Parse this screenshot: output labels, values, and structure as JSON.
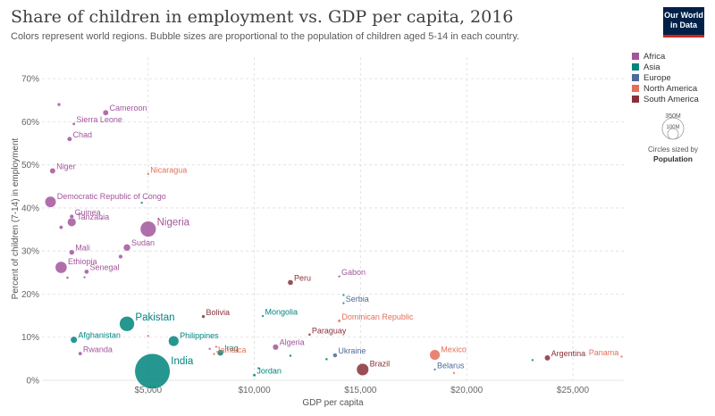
{
  "header": {
    "title": "Share of children in employment vs. GDP per capita, 2016",
    "subtitle": "Colors represent world regions. Bubble sizes are proportional to the population of children aged 5-14 in each country.",
    "logo_line1": "Our World",
    "logo_line2": "in Data"
  },
  "legend": {
    "items": [
      {
        "label": "Africa",
        "color": "#a2559c"
      },
      {
        "label": "Asia",
        "color": "#00847e"
      },
      {
        "label": "Europe",
        "color": "#4c6a9c"
      },
      {
        "label": "North America",
        "color": "#e56e5a"
      },
      {
        "label": "South America",
        "color": "#883039"
      }
    ]
  },
  "size_legend": {
    "big_label": "350M",
    "small_label": "100M",
    "caption_line1": "Circles sized by",
    "caption_line2": "Population"
  },
  "chart_data": {
    "type": "scatter",
    "title": "Share of children in employment vs. GDP per capita, 2016",
    "xlabel": "GDP per capita",
    "ylabel": "Percent of children (7-14) in employment",
    "xlim": [
      0,
      27400
    ],
    "ylim": [
      0,
      75
    ],
    "x_ticks": [
      5000,
      10000,
      15000,
      20000,
      25000
    ],
    "x_tick_labels": [
      "$5,000",
      "$10,000",
      "$15,000",
      "$20,000",
      "$25,000"
    ],
    "y_ticks": [
      0,
      10,
      20,
      30,
      40,
      50,
      60,
      70
    ],
    "y_tick_labels": [
      "0%",
      "10%",
      "20%",
      "30%",
      "40%",
      "50%",
      "60%",
      "70%"
    ],
    "grid": true,
    "legend_position": "right",
    "points": [
      {
        "label": "Cameroon",
        "x": 3000,
        "y": 62.1,
        "region": "Africa",
        "pop": 6.5
      },
      {
        "label": "Sierra Leone",
        "x": 1500,
        "y": 59.5,
        "region": "Africa",
        "pop": 1.9
      },
      {
        "label": "Chad",
        "x": 1300,
        "y": 56.0,
        "region": "Africa",
        "pop": 4.5
      },
      {
        "label": "Niger",
        "x": 500,
        "y": 48.6,
        "region": "Africa",
        "pop": 6.5
      },
      {
        "label": "Nicaragua",
        "x": 5000,
        "y": 47.9,
        "region": "North America",
        "pop": 1.3
      },
      {
        "label": "Democratic Republic of Congo",
        "x": 400,
        "y": 41.4,
        "region": "Africa",
        "pop": 25
      },
      {
        "label": "Guinea",
        "x": 1400,
        "y": 38.0,
        "region": "Africa",
        "pop": 3.5
      },
      {
        "label": "Tanzania",
        "x": 1400,
        "y": 36.7,
        "region": "Africa",
        "pop": 15
      },
      {
        "label": "Nigeria",
        "x": 5000,
        "y": 35.1,
        "region": "Africa",
        "pop": 50
      },
      {
        "label": "Sudan",
        "x": 4000,
        "y": 30.8,
        "region": "Africa",
        "pop": 10
      },
      {
        "label": "Mali",
        "x": 1400,
        "y": 29.7,
        "region": "Africa",
        "pop": 5.5
      },
      {
        "label": "Ethiopia",
        "x": 900,
        "y": 26.2,
        "region": "Africa",
        "pop": 28
      },
      {
        "label": "Senegal",
        "x": 2100,
        "y": 25.2,
        "region": "Africa",
        "pop": 4.2
      },
      {
        "label": "Gabon",
        "x": 14000,
        "y": 24.1,
        "region": "Africa",
        "pop": 0.5
      },
      {
        "label": "Peru",
        "x": 11700,
        "y": 22.7,
        "region": "South America",
        "pop": 6
      },
      {
        "label": "Serbia",
        "x": 14200,
        "y": 17.9,
        "region": "Europe",
        "pop": 0.8
      },
      {
        "label": "Bolivia",
        "x": 7600,
        "y": 14.8,
        "region": "South America",
        "pop": 2.5
      },
      {
        "label": "Mongolia",
        "x": 10400,
        "y": 14.9,
        "region": "Asia",
        "pop": 0.5
      },
      {
        "label": "Dominican Republic",
        "x": 14000,
        "y": 13.8,
        "region": "North America",
        "pop": 2
      },
      {
        "label": "Pakistan",
        "x": 4000,
        "y": 13.1,
        "region": "Asia",
        "pop": 45
      },
      {
        "label": "Paraguay",
        "x": 12600,
        "y": 10.6,
        "region": "South America",
        "pop": 1.5
      },
      {
        "label": "Philippines",
        "x": 6200,
        "y": 9.1,
        "region": "Asia",
        "pop": 22
      },
      {
        "label": "Afghanistan",
        "x": 1500,
        "y": 9.4,
        "region": "Asia",
        "pop": 9
      },
      {
        "label": "Algeria",
        "x": 11000,
        "y": 7.7,
        "region": "Africa",
        "pop": 7
      },
      {
        "label": "Iraq",
        "x": 8400,
        "y": 6.4,
        "region": "Asia",
        "pop": 8
      },
      {
        "label": "Jamaica",
        "x": 8100,
        "y": 6.1,
        "region": "North America",
        "pop": 0.5
      },
      {
        "label": "Mexico",
        "x": 18500,
        "y": 5.9,
        "region": "North America",
        "pop": 22
      },
      {
        "label": "Rwanda",
        "x": 1800,
        "y": 6.2,
        "region": "Africa",
        "pop": 3
      },
      {
        "label": "Ukraine",
        "x": 13800,
        "y": 5.8,
        "region": "Europe",
        "pop": 4
      },
      {
        "label": "Argentina",
        "x": 23800,
        "y": 5.2,
        "region": "South America",
        "pop": 6.5
      },
      {
        "label": "Panama",
        "x": 27300,
        "y": 5.5,
        "region": "North America",
        "pop": 0.7
      },
      {
        "label": "India",
        "x": 5200,
        "y": 2.1,
        "region": "Asia",
        "pop": 250
      },
      {
        "label": "Brazil",
        "x": 15100,
        "y": 2.5,
        "region": "South America",
        "pop": 30
      },
      {
        "label": "Belarus",
        "x": 18500,
        "y": 2.5,
        "region": "Europe",
        "pop": 1
      },
      {
        "label": "Jordan",
        "x": 10000,
        "y": 1.2,
        "region": "Asia",
        "pop": 2
      },
      {
        "label": "",
        "x": 800,
        "y": 64.0,
        "region": "Africa",
        "pop": 2.5
      },
      {
        "label": "",
        "x": 4700,
        "y": 41.2,
        "region": "Asia",
        "pop": 1.2
      },
      {
        "label": "",
        "x": 2800,
        "y": 37.5,
        "region": "Africa",
        "pop": 1.2
      },
      {
        "label": "",
        "x": 900,
        "y": 35.5,
        "region": "Africa",
        "pop": 3
      },
      {
        "label": "",
        "x": 3700,
        "y": 28.7,
        "region": "Africa",
        "pop": 3.5
      },
      {
        "label": "",
        "x": 1200,
        "y": 23.8,
        "region": "Africa",
        "pop": 1.5
      },
      {
        "label": "",
        "x": 2000,
        "y": 23.9,
        "region": "Africa",
        "pop": 1.2
      },
      {
        "label": "",
        "x": 14200,
        "y": 19.8,
        "region": "Asia",
        "pop": 0.8
      },
      {
        "label": "",
        "x": 5000,
        "y": 10.3,
        "region": "North America",
        "pop": 1.2
      },
      {
        "label": "",
        "x": 8200,
        "y": 7.8,
        "region": "North America",
        "pop": 1.2
      },
      {
        "label": "",
        "x": 7900,
        "y": 7.3,
        "region": "Africa",
        "pop": 1.2
      },
      {
        "label": "",
        "x": 11700,
        "y": 5.7,
        "region": "Asia",
        "pop": 1.5
      },
      {
        "label": "",
        "x": 13400,
        "y": 4.9,
        "region": "Asia",
        "pop": 1.5
      },
      {
        "label": "",
        "x": 10200,
        "y": 2.8,
        "region": "Asia",
        "pop": 1
      },
      {
        "label": "",
        "x": 19400,
        "y": 1.7,
        "region": "North America",
        "pop": 0.8
      },
      {
        "label": "",
        "x": 23100,
        "y": 4.7,
        "region": "Asia",
        "pop": 1
      }
    ]
  }
}
